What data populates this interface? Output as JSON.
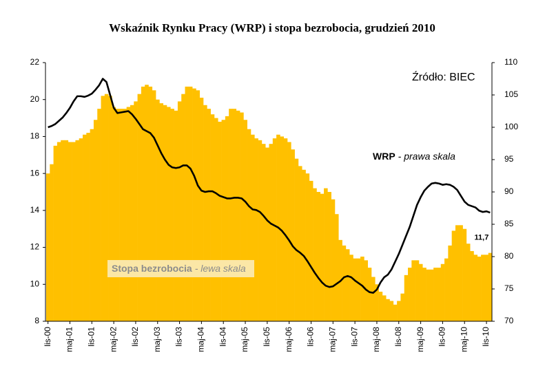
{
  "chart_data": {
    "type": "bar",
    "title": "Wskaźnik Rynku Pracy (WRP) i stopa bezrobocia, grudzień 2010",
    "annotations": [
      "Źródło: BIEC",
      "- prawa skala",
      "- lewa skala"
    ],
    "categories": [
      "lis-00",
      null,
      null,
      null,
      null,
      null,
      "maj-01",
      null,
      null,
      null,
      null,
      null,
      "lis-01",
      null,
      null,
      null,
      null,
      null,
      "maj-02",
      null,
      null,
      null,
      null,
      null,
      "lis-02",
      null,
      null,
      null,
      null,
      null,
      "maj-03",
      null,
      null,
      null,
      null,
      null,
      "lis-03",
      null,
      null,
      null,
      null,
      null,
      "maj-04",
      null,
      null,
      null,
      null,
      null,
      "lis-04",
      null,
      null,
      null,
      null,
      null,
      "maj-05",
      null,
      null,
      null,
      null,
      null,
      "lis-05",
      null,
      null,
      null,
      null,
      null,
      "maj-06",
      null,
      null,
      null,
      null,
      null,
      "lis-06",
      null,
      null,
      null,
      null,
      null,
      "maj-07",
      null,
      null,
      null,
      null,
      null,
      "lis-07",
      null,
      null,
      null,
      null,
      null,
      "maj-08",
      null,
      null,
      null,
      null,
      null,
      "lis-08",
      null,
      null,
      null,
      null,
      null,
      "maj-09",
      null,
      null,
      null,
      null,
      null,
      "lis-09",
      null,
      null,
      null,
      null,
      null,
      "maj-10",
      null,
      null,
      null,
      null,
      null,
      "lis-10",
      null
    ],
    "series": [
      {
        "name": "Stopa bezrobocia",
        "type": "bar",
        "color": "#ffc000",
        "values": [
          16.0,
          16.5,
          17.5,
          17.7,
          17.8,
          17.8,
          17.7,
          17.7,
          17.8,
          17.9,
          18.1,
          18.2,
          18.4,
          18.9,
          19.5,
          20.2,
          20.3,
          20.2,
          19.6,
          19.5,
          19.5,
          19.5,
          19.6,
          19.7,
          19.9,
          20.3,
          20.7,
          20.8,
          20.7,
          20.5,
          20.0,
          19.8,
          19.7,
          19.6,
          19.5,
          19.4,
          19.9,
          20.3,
          20.7,
          20.7,
          20.6,
          20.5,
          20.1,
          19.7,
          19.5,
          19.2,
          19.0,
          18.8,
          18.9,
          19.1,
          19.5,
          19.5,
          19.4,
          19.3,
          18.9,
          18.4,
          18.1,
          17.9,
          17.8,
          17.6,
          17.4,
          17.6,
          17.9,
          18.1,
          18.0,
          17.9,
          17.7,
          17.3,
          16.8,
          16.4,
          16.2,
          16.0,
          15.6,
          15.2,
          15.0,
          14.9,
          15.2,
          15.0,
          14.6,
          13.8,
          12.4,
          12.1,
          11.9,
          11.6,
          11.4,
          11.4,
          11.5,
          11.3,
          10.9,
          10.4,
          10.0,
          9.6,
          9.4,
          9.2,
          9.1,
          8.9,
          9.1,
          9.5,
          10.5,
          10.9,
          11.3,
          11.3,
          11.1,
          10.9,
          10.8,
          10.8,
          10.9,
          10.9,
          11.1,
          11.4,
          12.1,
          12.9,
          13.2,
          13.2,
          13.0,
          12.2,
          11.8,
          11.6,
          11.5,
          11.6,
          11.6,
          11.7
        ],
        "value_labels": [
          null,
          null,
          null,
          null,
          null,
          null,
          null,
          null,
          null,
          null,
          null,
          null,
          null,
          null,
          null,
          null,
          null,
          null,
          null,
          null,
          null,
          null,
          null,
          null,
          null,
          null,
          null,
          null,
          null,
          null,
          null,
          null,
          null,
          null,
          null,
          null,
          null,
          null,
          null,
          null,
          null,
          null,
          null,
          null,
          null,
          null,
          null,
          null,
          null,
          null,
          null,
          null,
          null,
          null,
          null,
          null,
          null,
          null,
          null,
          null,
          null,
          null,
          null,
          null,
          null,
          null,
          null,
          null,
          null,
          null,
          null,
          null,
          null,
          null,
          null,
          null,
          null,
          null,
          null,
          null,
          null,
          null,
          null,
          null,
          null,
          null,
          null,
          null,
          null,
          null,
          null,
          null,
          null,
          null,
          null,
          null,
          null,
          null,
          null,
          null,
          null,
          null,
          null,
          null,
          null,
          null,
          null,
          null,
          null,
          null,
          null,
          null,
          null,
          null,
          null,
          null,
          null,
          null,
          null,
          null,
          null,
          "11,7"
        ]
      },
      {
        "name": "WRP",
        "type": "line",
        "axis": "y2",
        "color": "#000000",
        "values": [
          100.0,
          100.2,
          100.5,
          101.0,
          101.5,
          102.2,
          103.0,
          104.0,
          104.8,
          104.8,
          104.7,
          104.9,
          105.2,
          105.8,
          106.5,
          107.5,
          107.0,
          105.0,
          103.0,
          102.2,
          102.3,
          102.4,
          102.5,
          102.0,
          101.3,
          100.5,
          99.7,
          99.4,
          99.1,
          98.4,
          97.2,
          96.0,
          95.0,
          94.2,
          93.8,
          93.7,
          93.8,
          94.1,
          94.1,
          93.6,
          92.5,
          91.0,
          90.2,
          90.0,
          90.1,
          90.1,
          89.8,
          89.4,
          89.2,
          89.0,
          89.0,
          89.1,
          89.1,
          89.0,
          88.5,
          87.8,
          87.3,
          87.2,
          86.9,
          86.3,
          85.6,
          85.1,
          84.8,
          84.5,
          84.0,
          83.3,
          82.5,
          81.6,
          81.0,
          80.6,
          80.1,
          79.3,
          78.4,
          77.5,
          76.7,
          76.0,
          75.5,
          75.3,
          75.4,
          75.8,
          76.2,
          76.8,
          77.0,
          76.8,
          76.3,
          75.9,
          75.5,
          74.9,
          74.5,
          74.4,
          74.9,
          76.0,
          76.8,
          77.2,
          78.0,
          79.2,
          80.4,
          81.8,
          83.2,
          84.6,
          86.3,
          88.0,
          89.2,
          90.2,
          90.8,
          91.3,
          91.4,
          91.3,
          91.1,
          91.2,
          91.1,
          90.8,
          90.3,
          89.4,
          88.5,
          88.0,
          87.8,
          87.6,
          87.1,
          86.9,
          87.0,
          86.8
        ]
      }
    ],
    "ylim": [
      8,
      22
    ],
    "yticks": [
      8,
      10,
      12,
      14,
      16,
      18,
      20,
      22
    ],
    "y2lim": [
      70,
      110
    ],
    "y2ticks": [
      70,
      75,
      80,
      85,
      90,
      95,
      100,
      105,
      110
    ],
    "grid": false
  }
}
